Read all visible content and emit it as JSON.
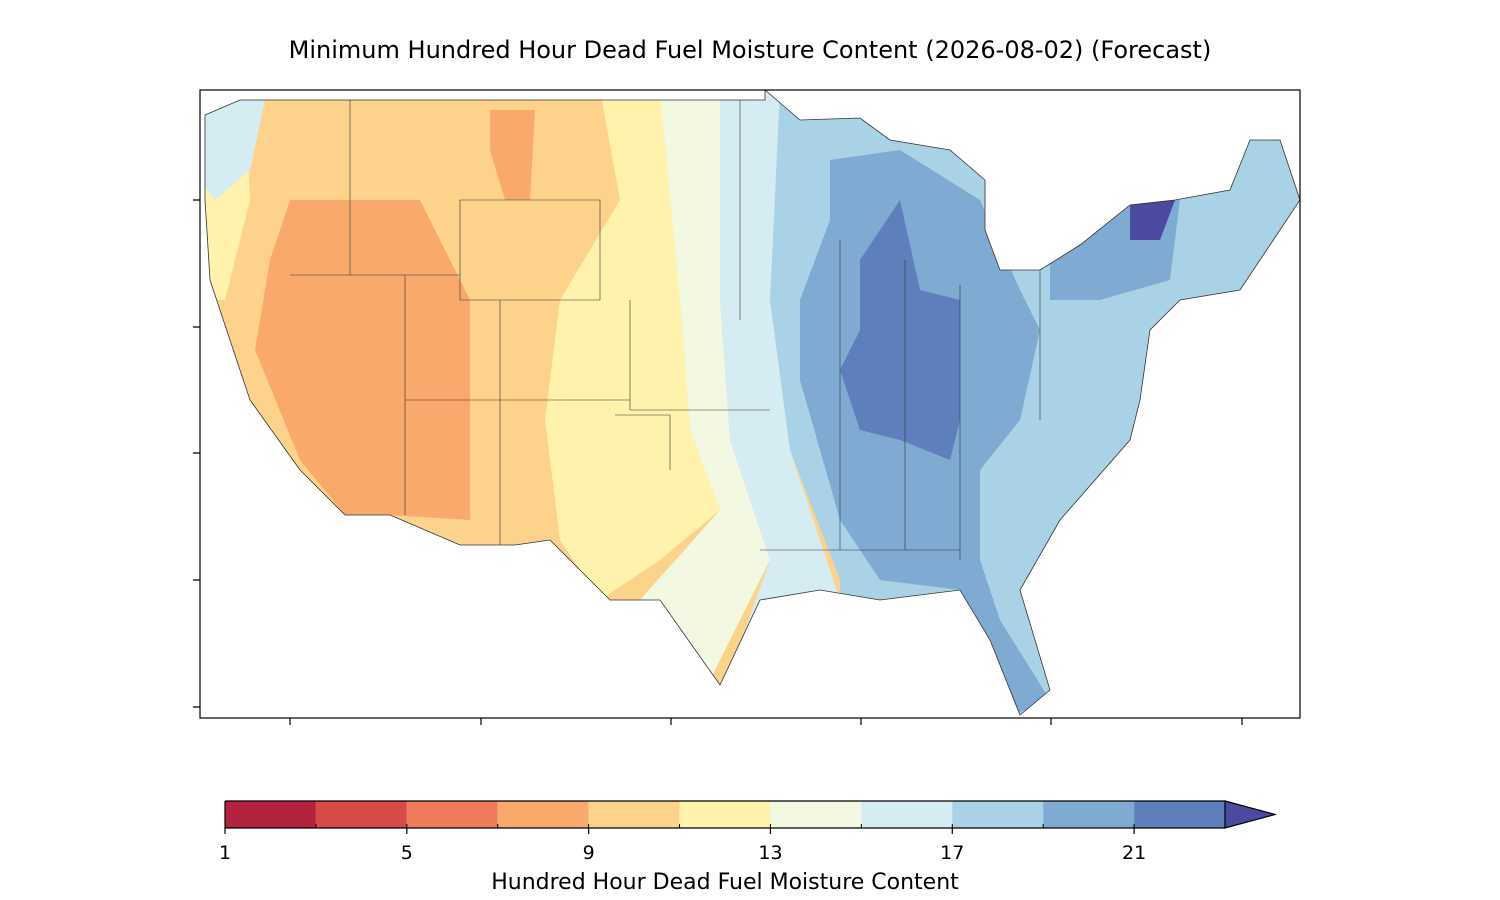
{
  "chart_data": {
    "type": "contour-map",
    "title": "Minimum Hundred Hour Dead Fuel Moisture Content (2026-08-02) (Forecast)",
    "colorbar": {
      "label": "Hundred Hour Dead Fuel Moisture Content",
      "lim": [
        1,
        23
      ],
      "levels": [
        1,
        3,
        5,
        7,
        9,
        11,
        13,
        15,
        17,
        19,
        21,
        23
      ],
      "colors": [
        "#b3233f",
        "#d84a48",
        "#ef7a5a",
        "#f8a96b",
        "#fdd38c",
        "#fef2ad",
        "#f2f8e1",
        "#d5ecf3",
        "#aad2e6",
        "#7fabd3",
        "#5d7fbc"
      ],
      "extend_color": "#4a4a9e",
      "ticks": [
        1,
        5,
        9,
        13,
        17,
        21
      ]
    }
  }
}
